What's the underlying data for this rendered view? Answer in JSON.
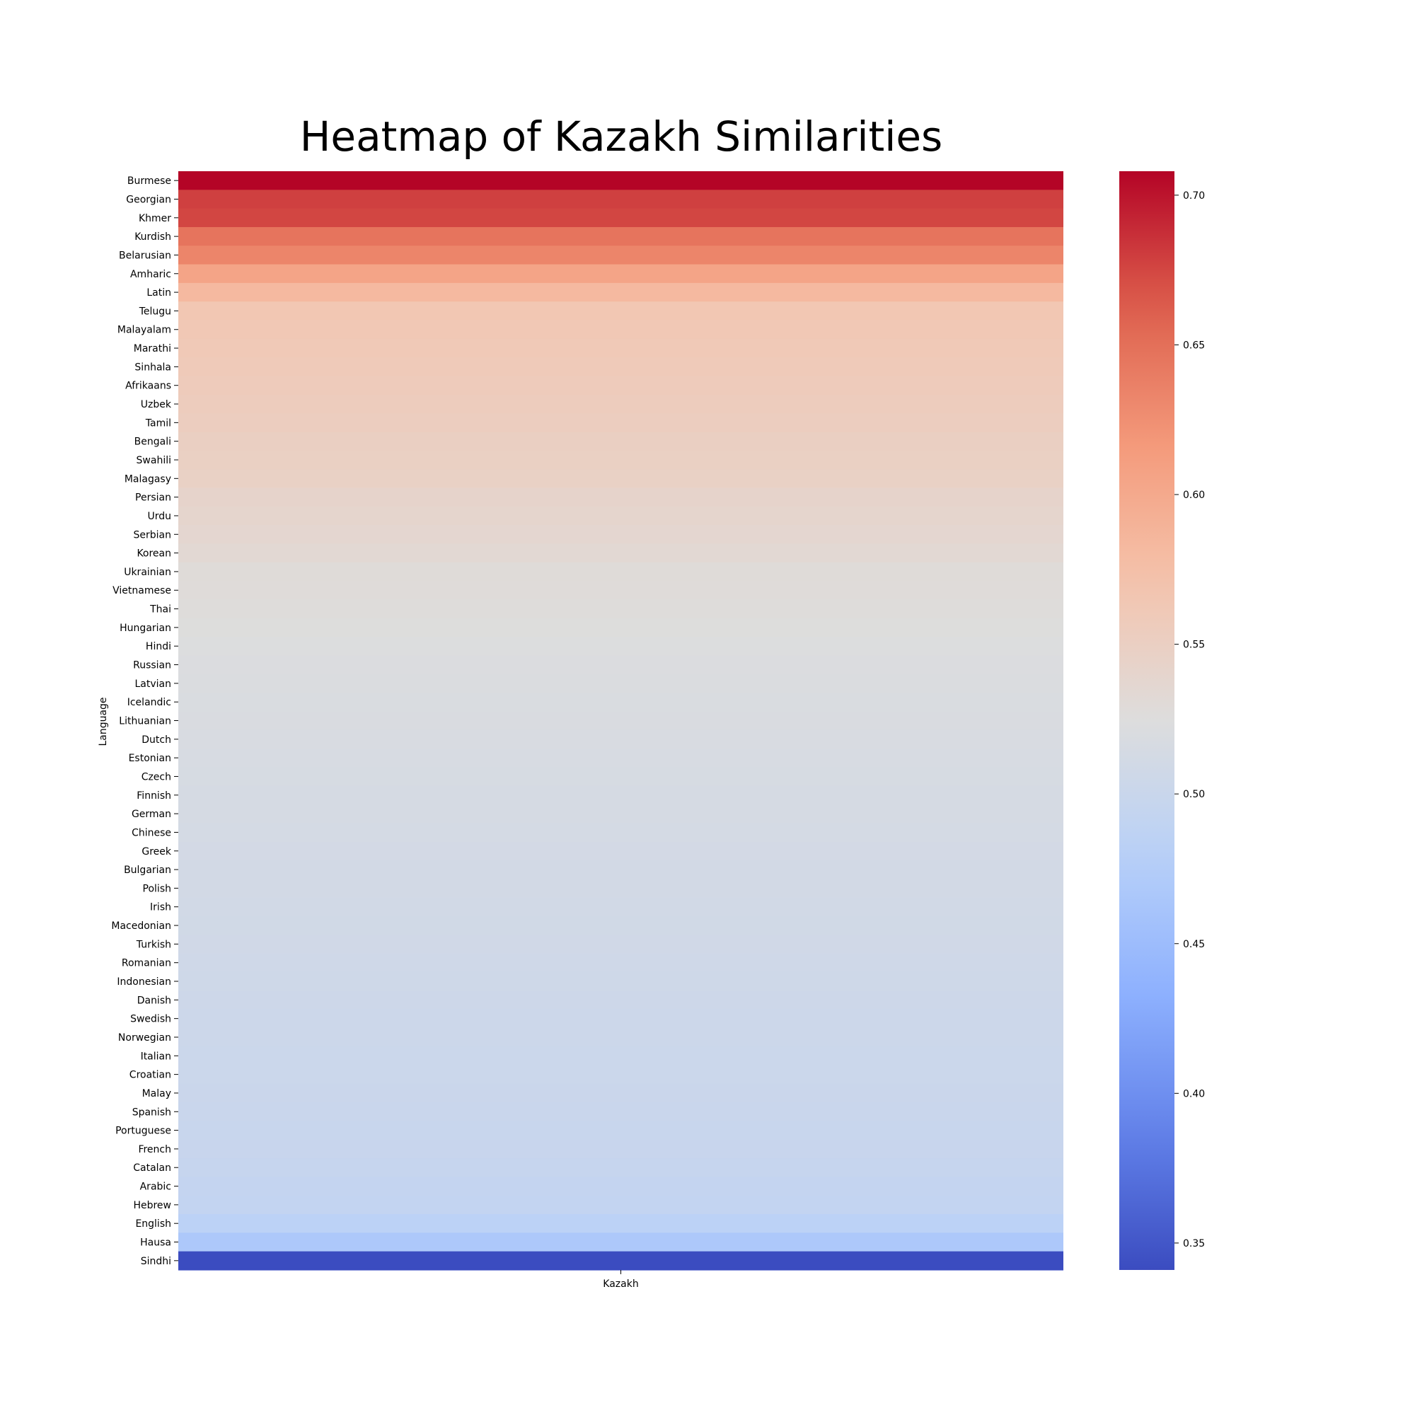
{
  "chart_data": {
    "type": "heatmap",
    "title": "Heatmap of Kazakh Similarities",
    "xlabel": "",
    "ylabel": "Language",
    "columns": [
      "Kazakh"
    ],
    "rows": [
      "Burmese",
      "Georgian",
      "Khmer",
      "Kurdish",
      "Belarusian",
      "Amharic",
      "Latin",
      "Telugu",
      "Malayalam",
      "Marathi",
      "Sinhala",
      "Afrikaans",
      "Uzbek",
      "Tamil",
      "Bengali",
      "Swahili",
      "Malagasy",
      "Persian",
      "Urdu",
      "Serbian",
      "Korean",
      "Ukrainian",
      "Vietnamese",
      "Thai",
      "Hungarian",
      "Hindi",
      "Russian",
      "Latvian",
      "Icelandic",
      "Lithuanian",
      "Dutch",
      "Estonian",
      "Czech",
      "Finnish",
      "German",
      "Chinese",
      "Greek",
      "Bulgarian",
      "Polish",
      "Irish",
      "Macedonian",
      "Turkish",
      "Romanian",
      "Indonesian",
      "Danish",
      "Swedish",
      "Norwegian",
      "Italian",
      "Croatian",
      "Malay",
      "Spanish",
      "Portuguese",
      "French",
      "Catalan",
      "Arabic",
      "Hebrew",
      "English",
      "Hausa",
      "Sindhi"
    ],
    "values": [
      0.708,
      0.678,
      0.675,
      0.646,
      0.633,
      0.605,
      0.582,
      0.565,
      0.563,
      0.561,
      0.559,
      0.557,
      0.555,
      0.553,
      0.55,
      0.549,
      0.547,
      0.542,
      0.54,
      0.537,
      0.534,
      0.529,
      0.528,
      0.527,
      0.525,
      0.523,
      0.522,
      0.521,
      0.52,
      0.519,
      0.518,
      0.517,
      0.516,
      0.515,
      0.514,
      0.513,
      0.512,
      0.511,
      0.511,
      0.51,
      0.509,
      0.508,
      0.507,
      0.506,
      0.505,
      0.504,
      0.503,
      0.502,
      0.502,
      0.501,
      0.5,
      0.499,
      0.498,
      0.496,
      0.494,
      0.492,
      0.484,
      0.467,
      0.341
    ],
    "colormap": "coolwarm",
    "vmin": 0.341,
    "vmax": 0.708,
    "colorbar_ticks": [
      0.35,
      0.4,
      0.45,
      0.5,
      0.55,
      0.6,
      0.65,
      0.7
    ],
    "colorbar_tick_labels": [
      "0.35",
      "0.40",
      "0.45",
      "0.50",
      "0.55",
      "0.60",
      "0.65",
      "0.70"
    ],
    "colorbar_placement": "right",
    "grid": false
  }
}
